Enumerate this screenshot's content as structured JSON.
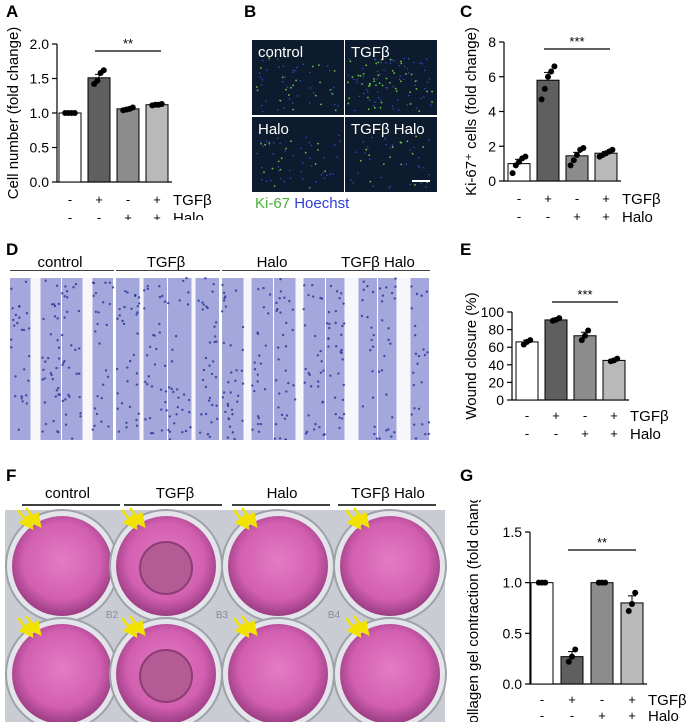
{
  "panels": {
    "A": "A",
    "B": "B",
    "C": "C",
    "D": "D",
    "E": "E",
    "F": "F",
    "G": "G"
  },
  "conditions": [
    "control",
    "TGFβ",
    "Halo",
    "TGFβ Halo"
  ],
  "legend_B": {
    "ki67": "Ki-67",
    "hoechst": "Hoechst"
  },
  "treatment_labels": {
    "tgfb": "TGFβ",
    "halo": "Halo"
  },
  "signs": {
    "tgfb": [
      "-",
      "+",
      "-",
      "+"
    ],
    "halo": [
      "-",
      "-",
      "+",
      "+"
    ]
  },
  "well_labels": [
    "B2",
    "B3",
    "B4"
  ],
  "colors": {
    "bar_fills": [
      "#ffffff",
      "#5f5f5f",
      "#8c8c8c",
      "#b9b9b9"
    ],
    "micro_bg": "#0d1b2e",
    "crystal_violet": "#4a56b8",
    "gel_pink": "#d25fb0",
    "arrow_yellow": "#f2e200",
    "ki67_green": "#4caf3a",
    "hoechst_blue": "#2f3fd8"
  },
  "chart_data": [
    {
      "panel": "A",
      "type": "bar",
      "ylabel": "Cell number (fold change)",
      "ylim": [
        0,
        2.0
      ],
      "yticks": [
        "0.0",
        "0.5",
        "1.0",
        "1.5",
        "2.0"
      ],
      "ytick_values": [
        0,
        0.5,
        1.0,
        1.5,
        2.0
      ],
      "values": [
        1.0,
        1.51,
        1.06,
        1.12
      ],
      "errors": [
        0.0,
        0.05,
        0.01,
        0.01
      ],
      "points": [
        [
          1.0,
          1.0,
          1.0,
          1.0
        ],
        [
          1.42,
          1.47,
          1.58,
          1.62
        ],
        [
          1.04,
          1.05,
          1.06,
          1.08
        ],
        [
          1.11,
          1.12,
          1.12,
          1.13
        ]
      ],
      "significance": {
        "from": 1,
        "to": 3,
        "label": "**"
      }
    },
    {
      "panel": "C",
      "type": "bar",
      "ylabel": "Ki-67⁺ cells (fold change)",
      "ylim": [
        0,
        8
      ],
      "yticks": [
        "0",
        "2",
        "4",
        "6",
        "8"
      ],
      "ytick_values": [
        0,
        2,
        4,
        6,
        8
      ],
      "values": [
        1.0,
        5.8,
        1.45,
        1.6
      ],
      "errors": [
        0.25,
        0.45,
        0.2,
        0.1
      ],
      "points": [
        [
          0.45,
          0.9,
          1.1,
          1.3,
          1.4
        ],
        [
          4.7,
          5.3,
          6.0,
          6.3,
          6.6
        ],
        [
          0.9,
          1.2,
          1.5,
          1.8,
          1.9
        ],
        [
          1.4,
          1.5,
          1.6,
          1.7,
          1.8
        ]
      ],
      "significance": {
        "from": 1,
        "to": 3,
        "label": "***"
      }
    },
    {
      "panel": "E",
      "type": "bar",
      "ylabel": "Wound closure (%)",
      "ylim": [
        0,
        100
      ],
      "yticks": [
        "0",
        "20",
        "40",
        "60",
        "80",
        "100"
      ],
      "ytick_values": [
        0,
        20,
        40,
        60,
        80,
        100
      ],
      "values": [
        66,
        91,
        73,
        45
      ],
      "errors": [
        2,
        2,
        4,
        1.5
      ],
      "points": [
        [
          63,
          66,
          68
        ],
        [
          90,
          91,
          93
        ],
        [
          68,
          73,
          79
        ],
        [
          44,
          45,
          47
        ]
      ],
      "significance": {
        "from": 1,
        "to": 3,
        "label": "***"
      }
    },
    {
      "panel": "G",
      "type": "bar",
      "ylabel": "Collagen gel contraction (fold change)",
      "ylim": [
        0,
        1.5
      ],
      "yticks": [
        "0.0",
        "0.5",
        "1.0",
        "1.5"
      ],
      "ytick_values": [
        0,
        0.5,
        1.0,
        1.5
      ],
      "values": [
        1.0,
        0.27,
        1.0,
        0.8
      ],
      "errors": [
        0.0,
        0.05,
        0.0,
        0.07
      ],
      "points": [
        [
          1.0,
          1.0,
          1.0
        ],
        [
          0.22,
          0.27,
          0.34
        ],
        [
          1.0,
          1.0,
          1.0
        ],
        [
          0.72,
          0.79,
          0.9
        ]
      ],
      "significance": {
        "from": 1,
        "to": 3,
        "label": "**"
      }
    }
  ]
}
